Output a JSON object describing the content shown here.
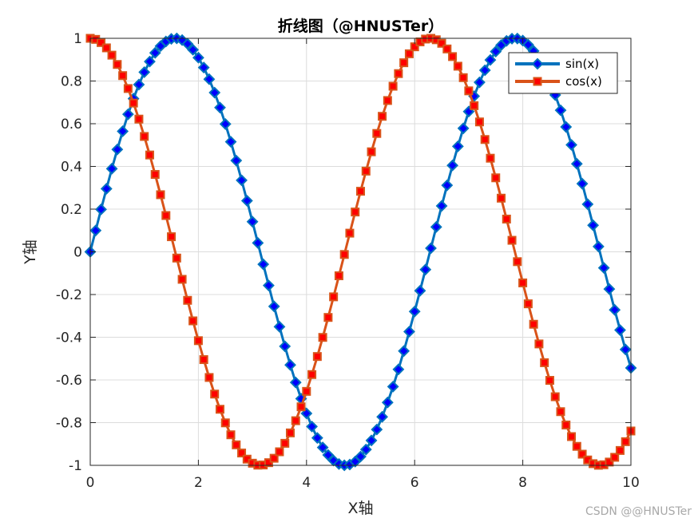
{
  "chart_data": {
    "type": "line",
    "title": "折线图（@HNUSTer）",
    "xlabel": "X轴",
    "ylabel": "Y轴",
    "xlim": [
      0,
      10
    ],
    "ylim": [
      -1,
      1
    ],
    "xticks": [
      "0",
      "2",
      "4",
      "6",
      "8",
      "10"
    ],
    "yticks": [
      "-1",
      "-0.8",
      "-0.6",
      "-0.4",
      "-0.2",
      "0",
      "0.2",
      "0.4",
      "0.6",
      "0.8",
      "1"
    ],
    "grid": true,
    "legend_location": "top-right",
    "x": [
      0,
      0.1,
      0.2,
      0.3,
      0.4,
      0.5,
      0.6,
      0.7,
      0.8,
      0.9,
      1,
      1.1,
      1.2,
      1.3,
      1.4,
      1.5,
      1.6,
      1.7,
      1.8,
      1.9,
      2,
      2.1,
      2.2,
      2.3,
      2.4,
      2.5,
      2.6,
      2.7,
      2.8,
      2.9,
      3,
      3.1,
      3.2,
      3.3,
      3.4,
      3.5,
      3.6,
      3.7,
      3.8,
      3.9,
      4,
      4.1,
      4.2,
      4.3,
      4.4,
      4.5,
      4.6,
      4.7,
      4.8,
      4.9,
      5,
      5.1,
      5.2,
      5.3,
      5.4,
      5.5,
      5.6,
      5.7,
      5.8,
      5.9,
      6,
      6.1,
      6.2,
      6.3,
      6.4,
      6.5,
      6.6,
      6.7,
      6.8,
      6.9,
      7,
      7.1,
      7.2,
      7.3,
      7.4,
      7.5,
      7.6,
      7.7,
      7.8,
      7.9,
      8,
      8.1,
      8.2,
      8.3,
      8.4,
      8.5,
      8.6,
      8.7,
      8.8,
      8.9,
      9,
      9.1,
      9.2,
      9.3,
      9.4,
      9.5,
      9.6,
      9.7,
      9.8,
      9.9,
      10
    ],
    "series": [
      {
        "name": "sin(x)",
        "color": "#0072bd",
        "marker": "diamond",
        "marker_color": "#0000ff",
        "values": [
          0,
          0.0998,
          0.1987,
          0.2955,
          0.3894,
          0.4794,
          0.5646,
          0.6442,
          0.7174,
          0.7833,
          0.8415,
          0.8912,
          0.932,
          0.9636,
          0.9854,
          0.9975,
          0.9996,
          0.9917,
          0.9738,
          0.9463,
          0.9093,
          0.8632,
          0.8085,
          0.7457,
          0.6755,
          0.5985,
          0.5155,
          0.4274,
          0.335,
          0.2392,
          0.1411,
          0.0416,
          -0.0584,
          -0.1577,
          -0.2555,
          -0.3508,
          -0.4425,
          -0.5298,
          -0.6119,
          -0.6878,
          -0.7568,
          -0.8183,
          -0.8716,
          -0.9162,
          -0.9516,
          -0.9775,
          -0.9937,
          -0.9999,
          -0.9962,
          -0.9825,
          -0.9589,
          -0.9258,
          -0.8835,
          -0.8323,
          -0.7728,
          -0.7055,
          -0.6313,
          -0.5507,
          -0.4646,
          -0.3739,
          -0.2794,
          -0.1822,
          -0.0831,
          0.0168,
          0.1165,
          0.2151,
          0.3115,
          0.4048,
          0.4941,
          0.5784,
          0.657,
          0.729,
          0.7937,
          0.8504,
          0.8987,
          0.938,
          0.9679,
          0.9882,
          0.9985,
          0.9989,
          0.9894,
          0.9699,
          0.9407,
          0.9022,
          0.8546,
          0.7985,
          0.7344,
          0.663,
          0.5849,
          0.501,
          0.4121,
          0.319,
          0.2229,
          0.1245,
          0.0248,
          -0.0752,
          -0.1743,
          -0.2718,
          -0.3665,
          -0.4575,
          -0.544
        ]
      },
      {
        "name": "cos(x)",
        "color": "#d95319",
        "marker": "square",
        "marker_color": "#ff0000",
        "values": [
          1,
          0.995,
          0.9801,
          0.9553,
          0.9211,
          0.8776,
          0.8253,
          0.7648,
          0.6967,
          0.6216,
          0.5403,
          0.4536,
          0.3624,
          0.2675,
          0.17,
          0.0707,
          -0.0292,
          -0.1288,
          -0.2272,
          -0.3233,
          -0.4161,
          -0.5048,
          -0.5885,
          -0.6663,
          -0.7374,
          -0.8011,
          -0.8569,
          -0.904,
          -0.9422,
          -0.971,
          -0.99,
          -0.9991,
          -0.9983,
          -0.9875,
          -0.9668,
          -0.9365,
          -0.8968,
          -0.8481,
          -0.791,
          -0.7259,
          -0.6536,
          -0.5748,
          -0.4903,
          -0.4008,
          -0.3073,
          -0.2108,
          -0.1122,
          -0.0124,
          0.0875,
          0.1865,
          0.2837,
          0.378,
          0.4685,
          0.5544,
          0.6347,
          0.7087,
          0.7756,
          0.8347,
          0.8855,
          0.9275,
          0.9602,
          0.9833,
          0.9965,
          0.9999,
          0.9932,
          0.9766,
          0.9502,
          0.9144,
          0.8694,
          0.8157,
          0.7539,
          0.6845,
          0.6084,
          0.5261,
          0.4385,
          0.3466,
          0.2513,
          0.1534,
          0.054,
          -0.046,
          -0.1455,
          -0.2435,
          -0.3392,
          -0.4314,
          -0.5193,
          -0.602,
          -0.6787,
          -0.7486,
          -0.811,
          -0.8654,
          -0.9111,
          -0.9477,
          -0.9748,
          -0.9922,
          -0.9997,
          -0.9972,
          -0.9847,
          -0.9624,
          -0.9304,
          -0.8892,
          -0.8391
        ]
      }
    ]
  },
  "watermark": "CSDN @@HNUSTer"
}
